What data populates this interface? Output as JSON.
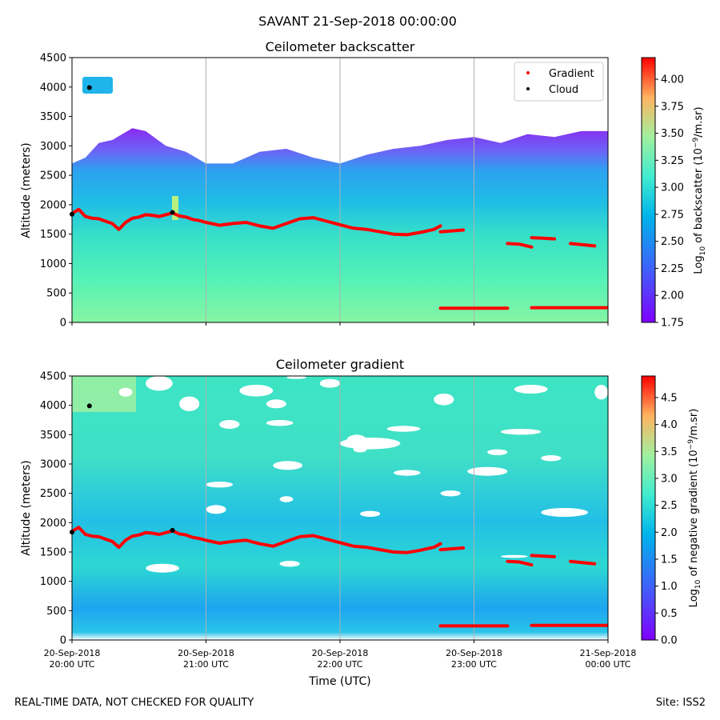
{
  "figure": {
    "suptitle": "SAVANT 21-Sep-2018 00:00:00",
    "footer_left": "REAL-TIME DATA, NOT CHECKED FOR QUALITY",
    "footer_right": "Site: ISS2"
  },
  "chart_data": [
    {
      "type": "heatmap",
      "title": "Ceilometer backscatter",
      "xlabel": "",
      "ylabel": "Altitude (meters)",
      "ylim": [
        0,
        4500
      ],
      "yticks": [
        0,
        500,
        1000,
        1500,
        2000,
        2500,
        3000,
        3500,
        4000,
        4500
      ],
      "ytick_labels": [
        "0",
        "500",
        "1000",
        "1500",
        "2000",
        "2500",
        "3000",
        "3500",
        "4000",
        "4500"
      ],
      "xlim_hours": [
        0,
        4
      ],
      "xtick_hours": [
        0,
        1,
        2,
        3,
        4
      ],
      "grid": "x",
      "legend": {
        "placement": "top-right",
        "entries": [
          "Gradient",
          "Cloud"
        ]
      },
      "colorbar": {
        "label_prefix": "Log",
        "label_sub": "10",
        "label_mid": " of backscatter (10",
        "label_sup": "−9",
        "label_suffix": "/m.sr)",
        "range": [
          1.75,
          4.2
        ],
        "ticks": [
          1.75,
          2.0,
          2.25,
          2.5,
          2.75,
          3.0,
          3.25,
          3.5,
          3.75,
          4.0
        ],
        "tick_labels": [
          "1.75",
          "2.00",
          "2.25",
          "2.50",
          "2.75",
          "3.00",
          "3.25",
          "3.50",
          "3.75",
          "4.00"
        ]
      },
      "top_boundary_m": {
        "hours": [
          0,
          0.1,
          0.2,
          0.3,
          0.45,
          0.55,
          0.7,
          0.85,
          1.0,
          1.2,
          1.4,
          1.6,
          1.8,
          2.0,
          2.2,
          2.4,
          2.6,
          2.8,
          3.0,
          3.2,
          3.4,
          3.6,
          3.8,
          4.0
        ],
        "values": [
          2700,
          2800,
          3050,
          3100,
          3300,
          3250,
          3000,
          2900,
          2700,
          2700,
          2900,
          2950,
          2800,
          2700,
          2850,
          2950,
          3000,
          3100,
          3150,
          3050,
          3200,
          3150,
          3250,
          3250
        ]
      }
    },
    {
      "type": "heatmap",
      "title": "Ceilometer gradient",
      "xlabel": "Time (UTC)",
      "ylabel": "Altitude (meters)",
      "ylim": [
        0,
        4500
      ],
      "yticks": [
        0,
        500,
        1000,
        1500,
        2000,
        2500,
        3000,
        3500,
        4000,
        4500
      ],
      "ytick_labels": [
        "0",
        "500",
        "1000",
        "1500",
        "2000",
        "2500",
        "3000",
        "3500",
        "4000",
        "4500"
      ],
      "xlim_hours": [
        0,
        4
      ],
      "xtick_hours": [
        0,
        1,
        2,
        3,
        4
      ],
      "xtick_labels": [
        [
          "20-Sep-2018",
          "20:00 UTC"
        ],
        [
          "20-Sep-2018",
          "21:00 UTC"
        ],
        [
          "20-Sep-2018",
          "22:00 UTC"
        ],
        [
          "20-Sep-2018",
          "23:00 UTC"
        ],
        [
          "21-Sep-2018",
          "00:00 UTC"
        ]
      ],
      "grid": "x",
      "colorbar": {
        "label_prefix": "Log",
        "label_sub": "10",
        "label_mid": " of negative gradient (10",
        "label_sup": "−9",
        "label_suffix": "/m.sr)",
        "range": [
          0,
          4.9
        ],
        "ticks": [
          0,
          0.5,
          1.0,
          1.5,
          2.0,
          2.5,
          3.0,
          3.5,
          4.0,
          4.5
        ],
        "tick_labels": [
          "0.0",
          "0.5",
          "1.0",
          "1.5",
          "2.0",
          "2.5",
          "3.0",
          "3.5",
          "4.0",
          "4.5"
        ]
      },
      "gaps_m": [
        {
          "h0": 0.55,
          "h1": 0.75,
          "a0": 4250,
          "a1": 4500
        },
        {
          "h0": 0.8,
          "h1": 0.95,
          "a0": 3900,
          "a1": 4150
        },
        {
          "h0": 1.25,
          "h1": 1.5,
          "a0": 4150,
          "a1": 4350
        },
        {
          "h0": 1.45,
          "h1": 1.6,
          "a0": 3950,
          "a1": 4100
        },
        {
          "h0": 1.5,
          "h1": 1.72,
          "a0": 2900,
          "a1": 3050
        },
        {
          "h0": 1.0,
          "h1": 1.15,
          "a0": 2150,
          "a1": 2300
        },
        {
          "h0": 2.05,
          "h1": 2.2,
          "a0": 3300,
          "a1": 3500
        },
        {
          "h0": 1.45,
          "h1": 1.65,
          "a0": 3650,
          "a1": 3750
        },
        {
          "h0": 1.55,
          "h1": 1.7,
          "a0": 1250,
          "a1": 1350
        },
        {
          "h0": 1.6,
          "h1": 1.75,
          "a0": 4450,
          "a1": 4500
        },
        {
          "h0": 1.85,
          "h1": 2.0,
          "a0": 4300,
          "a1": 4450
        },
        {
          "h0": 2.1,
          "h1": 2.2,
          "a0": 3200,
          "a1": 3300
        },
        {
          "h0": 2.35,
          "h1": 2.6,
          "a0": 3550,
          "a1": 3650
        },
        {
          "h0": 2.7,
          "h1": 2.85,
          "a0": 4000,
          "a1": 4200
        },
        {
          "h0": 3.3,
          "h1": 3.55,
          "a0": 4200,
          "a1": 4350
        },
        {
          "h0": 3.1,
          "h1": 3.25,
          "a0": 3150,
          "a1": 3250
        },
        {
          "h0": 3.5,
          "h1": 3.65,
          "a0": 3050,
          "a1": 3150
        },
        {
          "h0": 0.55,
          "h1": 0.8,
          "a0": 1150,
          "a1": 1300
        },
        {
          "h0": 2.0,
          "h1": 2.45,
          "a0": 3250,
          "a1": 3450
        },
        {
          "h0": 2.95,
          "h1": 3.25,
          "a0": 2800,
          "a1": 2950
        },
        {
          "h0": 3.2,
          "h1": 3.5,
          "a0": 3500,
          "a1": 3600
        },
        {
          "h0": 3.2,
          "h1": 3.4,
          "a0": 1400,
          "a1": 1450
        },
        {
          "h0": 3.5,
          "h1": 3.85,
          "a0": 2100,
          "a1": 2250
        },
        {
          "h0": 3.9,
          "h1": 4.0,
          "a0": 4100,
          "a1": 4350
        },
        {
          "h0": 0.35,
          "h1": 0.45,
          "a0": 4150,
          "a1": 4300
        },
        {
          "h0": 1.1,
          "h1": 1.25,
          "a0": 3600,
          "a1": 3750
        },
        {
          "h0": 1.0,
          "h1": 1.2,
          "a0": 2600,
          "a1": 2700
        },
        {
          "h0": 2.15,
          "h1": 2.3,
          "a0": 2100,
          "a1": 2200
        },
        {
          "h0": 1.55,
          "h1": 1.65,
          "a0": 2350,
          "a1": 2450
        },
        {
          "h0": 2.75,
          "h1": 2.9,
          "a0": 2450,
          "a1": 2550
        },
        {
          "h0": 2.4,
          "h1": 2.6,
          "a0": 2800,
          "a1": 2900
        }
      ]
    }
  ],
  "gradient_line_m": {
    "hours": [
      0,
      0.05,
      0.1,
      0.15,
      0.2,
      0.25,
      0.3,
      0.35,
      0.4,
      0.45,
      0.5,
      0.55,
      0.6,
      0.65,
      0.7,
      0.75,
      0.8,
      0.85,
      0.9,
      0.95,
      1.0,
      1.1,
      1.2,
      1.3,
      1.4,
      1.5,
      1.6,
      1.7,
      1.8,
      1.9,
      2.0,
      2.1,
      2.2,
      2.3,
      2.4,
      2.5,
      2.6,
      2.7,
      2.75
    ],
    "values": [
      1850,
      1920,
      1800,
      1770,
      1760,
      1720,
      1680,
      1580,
      1700,
      1770,
      1790,
      1830,
      1820,
      1800,
      1830,
      1860,
      1810,
      1790,
      1750,
      1730,
      1700,
      1650,
      1680,
      1700,
      1640,
      1600,
      1680,
      1760,
      1780,
      1720,
      1660,
      1600,
      1580,
      1540,
      1500,
      1490,
      1530,
      1580,
      1640
    ],
    "segments": [
      {
        "h0": 2.75,
        "h1": 2.92,
        "values": [
          1540,
          1570
        ]
      },
      {
        "h0": 3.25,
        "h1": 3.43,
        "values": [
          1340,
          1330,
          1280
        ]
      },
      {
        "h0": 3.43,
        "h1": 3.6,
        "values": [
          1440,
          1430,
          1420
        ]
      },
      {
        "h0": 3.72,
        "h1": 3.9,
        "values": [
          1340,
          1320,
          1300
        ]
      },
      {
        "h0": 2.75,
        "h1": 3.25,
        "values": [
          240,
          240
        ]
      },
      {
        "h0": 3.43,
        "h1": 4.0,
        "values": [
          250,
          250
        ]
      }
    ]
  },
  "cloud_points_m": [
    {
      "h": 0.0,
      "a": 1840
    },
    {
      "h": 0.13,
      "a": 3990
    },
    {
      "h": 0.75,
      "a": 1870
    }
  ]
}
